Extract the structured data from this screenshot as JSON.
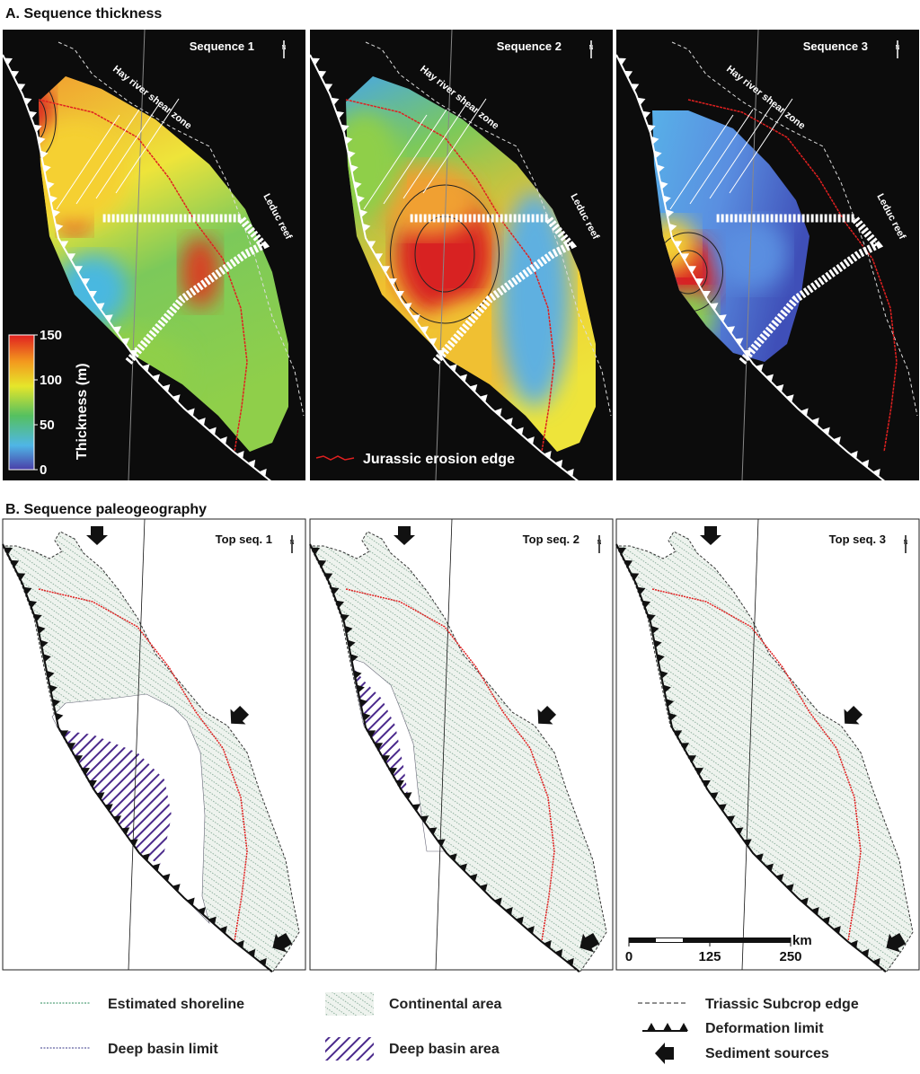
{
  "panel_a": {
    "title": "A. Sequence thickness",
    "maps": [
      {
        "label": "Sequence 1"
      },
      {
        "label": "Sequence 2"
      },
      {
        "label": "Sequence 3"
      }
    ],
    "shear_zone": "Hay river shear zone",
    "reef": "Leduc reef",
    "north": "N",
    "colorbar": {
      "label": "Thickness (m)",
      "lim": [
        0,
        150
      ],
      "ticks": [
        0,
        50,
        100,
        150
      ]
    },
    "erosion_legend": "Jurassic erosion edge"
  },
  "panel_b": {
    "title": "B. Sequence paleogeography",
    "maps": [
      {
        "label": "Top seq. 1"
      },
      {
        "label": "Top seq. 2"
      },
      {
        "label": "Top seq. 3"
      }
    ],
    "north": "N",
    "scale_bar": {
      "lim": [
        0,
        250
      ],
      "ticks": [
        0,
        125,
        250
      ],
      "unit": "km"
    }
  },
  "legend": {
    "shoreline": "Estimated shoreline",
    "deep_basin_limit": "Deep basin limit",
    "continental": "Continental area",
    "deep_basin_area": "Deep basin area",
    "subcrop": "Triassic Subcrop edge",
    "deformation": "Deformation limit",
    "sources": "Sediment sources"
  }
}
